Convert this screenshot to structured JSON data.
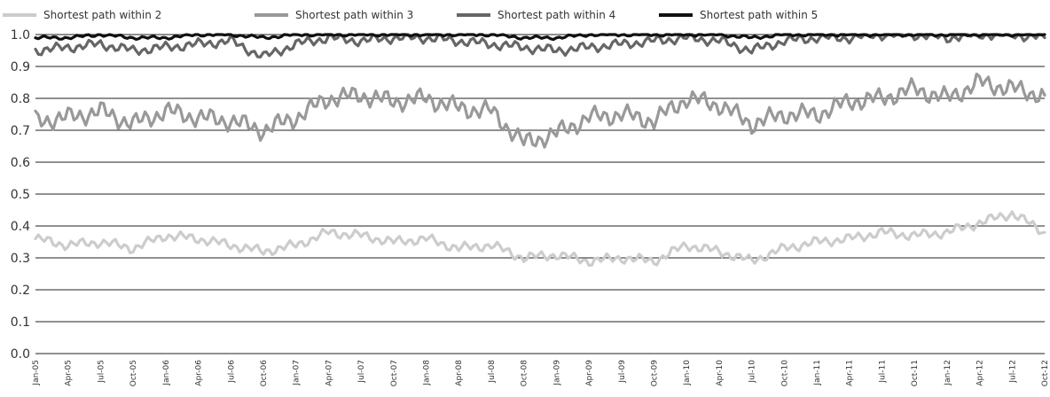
{
  "chart_data": {
    "type": "line",
    "title": "",
    "xlabel": "",
    "ylabel": "",
    "ylim": [
      0.0,
      1.0
    ],
    "yticks": [
      "0.0",
      "0.1",
      "0.2",
      "0.3",
      "0.4",
      "0.5",
      "0.6",
      "0.7",
      "0.8",
      "0.9",
      "1.0"
    ],
    "grid": "horizontal",
    "legend": "top",
    "categories": [
      "Jan-05",
      "Apr-05",
      "Jul-05",
      "Oct-05",
      "Jan-06",
      "Apr-06",
      "Jul-06",
      "Oct-06",
      "Jan-07",
      "Apr-07",
      "Jul-07",
      "Oct-07",
      "Jan-08",
      "Apr-08",
      "Jul-08",
      "Oct-08",
      "Jan-09",
      "Apr-09",
      "Jul-09",
      "Oct-09",
      "Jan-10",
      "Apr-10",
      "Jul-10",
      "Oct-10",
      "Jan-11",
      "Apr-11",
      "Jul-11",
      "Oct-11",
      "Jan-12",
      "Apr-12",
      "Jul-12",
      "Oct-12"
    ],
    "series": [
      {
        "name": "Shortest path within 2",
        "color": "#cccccc",
        "values": [
          0.36,
          0.34,
          0.35,
          0.33,
          0.37,
          0.36,
          0.34,
          0.32,
          0.34,
          0.38,
          0.37,
          0.35,
          0.36,
          0.33,
          0.34,
          0.3,
          0.31,
          0.29,
          0.3,
          0.29,
          0.34,
          0.32,
          0.29,
          0.33,
          0.35,
          0.36,
          0.38,
          0.37,
          0.38,
          0.41,
          0.44,
          0.38
        ]
      },
      {
        "name": "Shortest path within 3",
        "color": "#999999",
        "values": [
          0.73,
          0.74,
          0.76,
          0.72,
          0.76,
          0.74,
          0.73,
          0.7,
          0.74,
          0.8,
          0.81,
          0.79,
          0.8,
          0.77,
          0.76,
          0.66,
          0.69,
          0.74,
          0.75,
          0.73,
          0.8,
          0.78,
          0.72,
          0.75,
          0.75,
          0.79,
          0.8,
          0.83,
          0.8,
          0.85,
          0.83,
          0.81
        ]
      },
      {
        "name": "Shortest path within 4",
        "color": "#666666",
        "values": [
          0.95,
          0.96,
          0.97,
          0.95,
          0.96,
          0.97,
          0.98,
          0.93,
          0.97,
          0.99,
          0.98,
          0.99,
          0.99,
          0.98,
          0.97,
          0.96,
          0.95,
          0.96,
          0.97,
          0.98,
          0.99,
          0.98,
          0.95,
          0.98,
          0.99,
          0.99,
          1.0,
          1.0,
          0.99,
          1.0,
          1.0,
          0.99
        ]
      },
      {
        "name": "Shortest path within 5",
        "color": "#111111",
        "values": [
          0.99,
          0.99,
          1.0,
          0.99,
          0.99,
          1.0,
          1.0,
          0.99,
          1.0,
          1.0,
          1.0,
          1.0,
          1.0,
          1.0,
          1.0,
          0.99,
          0.99,
          1.0,
          1.0,
          1.0,
          1.0,
          1.0,
          0.99,
          1.0,
          1.0,
          1.0,
          1.0,
          1.0,
          1.0,
          1.0,
          1.0,
          1.0
        ]
      }
    ]
  }
}
